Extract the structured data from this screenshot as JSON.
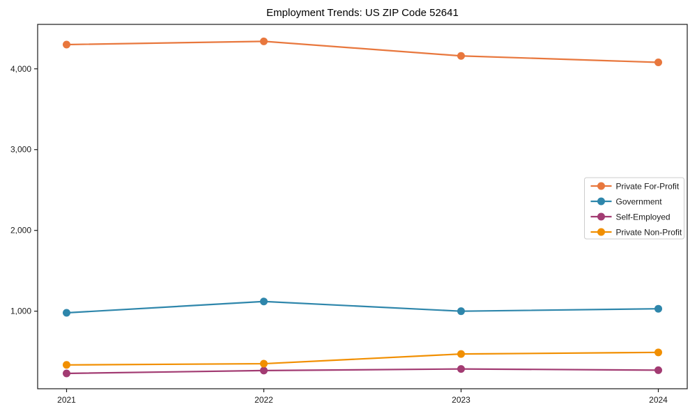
{
  "chart_data": {
    "type": "line",
    "title": "Employment Trends: US ZIP Code 52641",
    "xlabel": "",
    "ylabel": "",
    "grid": false,
    "legend_position": "center-right",
    "categories": [
      "2021",
      "2022",
      "2023",
      "2024"
    ],
    "series": [
      {
        "name": "Private For-Profit",
        "color": "#E8773D",
        "values": [
          4300,
          4340,
          4160,
          4080
        ]
      },
      {
        "name": "Government",
        "color": "#2E86AB",
        "values": [
          980,
          1120,
          1000,
          1030
        ]
      },
      {
        "name": "Self-Employed",
        "color": "#A23B72",
        "values": [
          230,
          265,
          285,
          270
        ]
      },
      {
        "name": "Private Non-Profit",
        "color": "#F18F01",
        "values": [
          335,
          350,
          470,
          490
        ]
      }
    ],
    "y_ticks": [
      {
        "value": 1000,
        "label": "1,000"
      },
      {
        "value": 2000,
        "label": "2,000"
      },
      {
        "value": 3000,
        "label": "3,000"
      },
      {
        "value": 4000,
        "label": "4,000"
      }
    ],
    "ylim": [
      40,
      4550
    ],
    "axis_color": "#1a1a1a",
    "tick_label_color": "#1a1a1a",
    "legend_border_color": "#cccccc",
    "background_color": "#ffffff"
  }
}
